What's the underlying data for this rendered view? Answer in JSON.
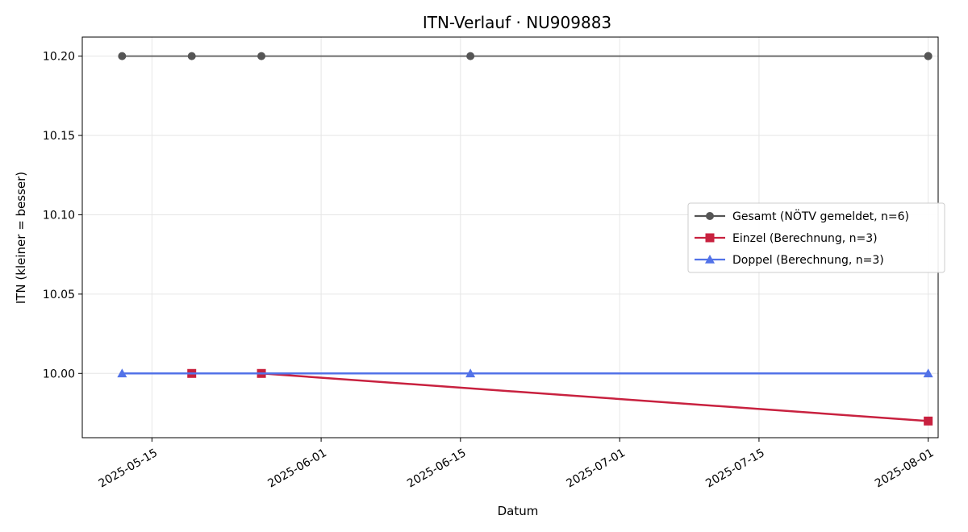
{
  "chart_data": {
    "type": "line",
    "title": "ITN-Verlauf · NU909883",
    "xlabel": "Datum",
    "ylabel": "ITN  (kleiner = besser)",
    "x_axis": "date",
    "xlim": [
      "2025-05-08",
      "2025-08-02"
    ],
    "ylim": [
      9.9595,
      10.212
    ],
    "x_ticks": [
      "2025-05-15",
      "2025-06-01",
      "2025-06-15",
      "2025-07-01",
      "2025-07-15",
      "2025-08-01"
    ],
    "y_ticks": [
      "10.00",
      "10.05",
      "10.10",
      "10.15",
      "10.20"
    ],
    "grid": true,
    "legend_position": "center-right",
    "series": [
      {
        "name": "Gesamt (NÖTV gemeldet, n=6)",
        "color": "#555555",
        "marker": "circle",
        "points": [
          {
            "x": "2025-05-12",
            "y": 10.2
          },
          {
            "x": "2025-05-19",
            "y": 10.2
          },
          {
            "x": "2025-05-26",
            "y": 10.2
          },
          {
            "x": "2025-06-16",
            "y": 10.2
          },
          {
            "x": "2025-08-01",
            "y": 10.2
          },
          {
            "x": "2025-08-01",
            "y": 10.2
          }
        ]
      },
      {
        "name": "Einzel (Berechnung, n=3)",
        "color": "#c8213f",
        "marker": "square",
        "points": [
          {
            "x": "2025-05-19",
            "y": 10.0
          },
          {
            "x": "2025-05-26",
            "y": 10.0
          },
          {
            "x": "2025-08-01",
            "y": 9.97
          }
        ]
      },
      {
        "name": "Doppel (Berechnung, n=3)",
        "color": "#5272e8",
        "marker": "triangle",
        "points": [
          {
            "x": "2025-05-12",
            "y": 10.0
          },
          {
            "x": "2025-06-16",
            "y": 10.0
          },
          {
            "x": "2025-08-01",
            "y": 10.0
          }
        ]
      }
    ]
  }
}
